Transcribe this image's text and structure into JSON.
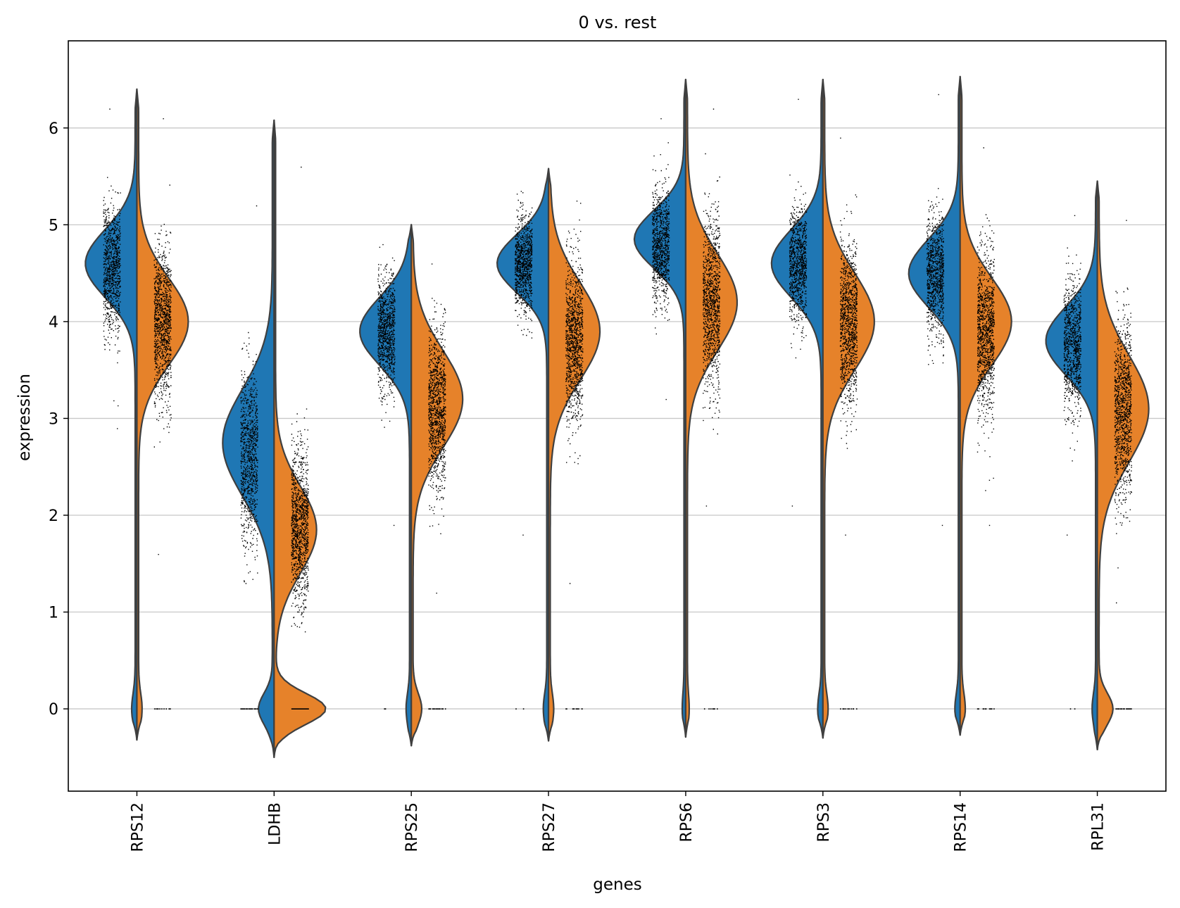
{
  "chart_data": {
    "type": "violin",
    "title": "0 vs. rest",
    "xlabel": "genes",
    "ylabel": "expression",
    "ylim": [
      -0.85,
      6.9
    ],
    "yticks": [
      0,
      1,
      2,
      3,
      4,
      5,
      6
    ],
    "grid": "horizontal",
    "split": true,
    "groups": [
      {
        "name": "0",
        "color": "#1f77b4",
        "side": "left"
      },
      {
        "name": "rest",
        "color": "#e6822a",
        "side": "right"
      }
    ],
    "categories": [
      "RPS12",
      "LDHB",
      "RPS25",
      "RPS27",
      "RPS6",
      "RPS3",
      "RPS14",
      "RPL31"
    ],
    "violins": [
      {
        "gene": "RPS12",
        "range": [
          -0.32,
          6.4
        ],
        "left": {
          "mode": 4.6,
          "spread": 0.35,
          "zero_frac": 0.02
        },
        "right": {
          "mode": 4.0,
          "spread": 0.45,
          "zero_frac": 0.02
        },
        "points_left": {
          "center": 4.55,
          "spread": 0.45,
          "min": 2.9,
          "max": 6.2
        },
        "points_right": {
          "center": 4.0,
          "spread": 0.55,
          "min": 1.6,
          "max": 6.1
        }
      },
      {
        "gene": "LDHB",
        "range": [
          -0.5,
          6.08
        ],
        "left": {
          "mode": 2.75,
          "spread": 0.55,
          "zero_frac": 0.08
        },
        "right": {
          "mode": 1.85,
          "spread": 0.45,
          "zero_frac": 0.35
        },
        "points_left": {
          "center": 2.6,
          "spread": 0.6,
          "min": 1.3,
          "max": 5.2
        },
        "points_right": {
          "center": 1.9,
          "spread": 0.55,
          "min": 0.8,
          "max": 5.6
        }
      },
      {
        "gene": "RPS25",
        "range": [
          -0.38,
          5.0
        ],
        "left": {
          "mode": 3.9,
          "spread": 0.35,
          "zero_frac": 0.02
        },
        "right": {
          "mode": 3.2,
          "spread": 0.5,
          "zero_frac": 0.05
        },
        "points_left": {
          "center": 3.9,
          "spread": 0.4,
          "min": 1.9,
          "max": 4.8
        },
        "points_right": {
          "center": 3.1,
          "spread": 0.55,
          "min": 1.2,
          "max": 4.6
        }
      },
      {
        "gene": "RPS27",
        "range": [
          -0.33,
          5.58
        ],
        "left": {
          "mode": 4.6,
          "spread": 0.3,
          "zero_frac": 0.02
        },
        "right": {
          "mode": 3.9,
          "spread": 0.5,
          "zero_frac": 0.02
        },
        "points_left": {
          "center": 4.6,
          "spread": 0.35,
          "min": 1.8,
          "max": 5.35
        },
        "points_right": {
          "center": 3.8,
          "spread": 0.55,
          "min": 1.3,
          "max": 5.25
        }
      },
      {
        "gene": "RPS6",
        "range": [
          -0.29,
          6.5
        ],
        "left": {
          "mode": 4.85,
          "spread": 0.3,
          "zero_frac": 0.01
        },
        "right": {
          "mode": 4.2,
          "spread": 0.5,
          "zero_frac": 0.01
        },
        "points_left": {
          "center": 4.8,
          "spread": 0.4,
          "min": 3.2,
          "max": 6.1
        },
        "points_right": {
          "center": 4.2,
          "spread": 0.6,
          "min": 2.1,
          "max": 6.2
        }
      },
      {
        "gene": "RPS3",
        "range": [
          -0.3,
          6.5
        ],
        "left": {
          "mode": 4.6,
          "spread": 0.35,
          "zero_frac": 0.02
        },
        "right": {
          "mode": 4.0,
          "spread": 0.5,
          "zero_frac": 0.02
        },
        "points_left": {
          "center": 4.6,
          "spread": 0.4,
          "min": 2.1,
          "max": 6.3
        },
        "points_right": {
          "center": 4.0,
          "spread": 0.55,
          "min": 1.8,
          "max": 5.9
        }
      },
      {
        "gene": "RPS14",
        "range": [
          -0.27,
          6.53
        ],
        "left": {
          "mode": 4.5,
          "spread": 0.35,
          "zero_frac": 0.02
        },
        "right": {
          "mode": 4.0,
          "spread": 0.45,
          "zero_frac": 0.02
        },
        "points_left": {
          "center": 4.5,
          "spread": 0.4,
          "min": 1.9,
          "max": 6.35
        },
        "points_right": {
          "center": 3.9,
          "spread": 0.55,
          "min": 1.9,
          "max": 5.8
        }
      },
      {
        "gene": "RPL31",
        "range": [
          -0.42,
          5.45
        ],
        "left": {
          "mode": 3.8,
          "spread": 0.35,
          "zero_frac": 0.02
        },
        "right": {
          "mode": 3.1,
          "spread": 0.55,
          "zero_frac": 0.08
        },
        "points_left": {
          "center": 3.75,
          "spread": 0.45,
          "min": 1.8,
          "max": 5.1
        },
        "points_right": {
          "center": 3.1,
          "spread": 0.6,
          "min": 1.1,
          "max": 5.05
        }
      }
    ]
  }
}
